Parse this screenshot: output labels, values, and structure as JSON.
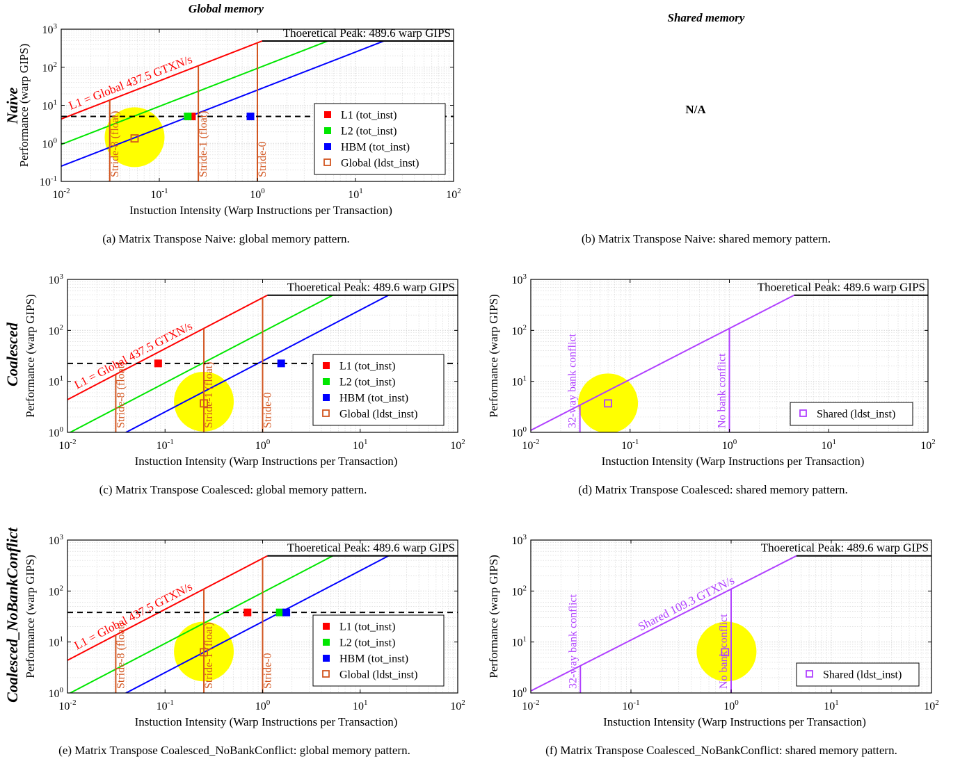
{
  "column_headers": {
    "global": "Global memory",
    "shared": "Shared memory"
  },
  "row_headers": [
    "Naive",
    "Coalesced",
    "Coalesced_NoBankConflict"
  ],
  "na_text": "N/A",
  "captions": {
    "a": "(a) Matrix Transpose Naive: global memory pattern.",
    "b": "(b) Matrix Transpose Naive: shared memory pattern.",
    "c": "(c) Matrix Transpose Coalesced: global memory pattern.",
    "d": "(d) Matrix Transpose Coalesced: shared memory pattern.",
    "e": "(e) Matrix Transpose Coalesced_NoBankConflict: global memory pattern.",
    "f": "(f) Matrix Transpose Coalesced_NoBankConflict: shared memory pattern."
  },
  "colors": {
    "l1": "#ff0000",
    "l2": "#00e600",
    "hbm": "#0000ff",
    "global": "#d2541e",
    "shared": "#b040ff",
    "highlight": "#ffff00",
    "peak": "#000000",
    "grid": "#d9d9d9"
  },
  "chart_data": [
    {
      "id": "a",
      "type": "scatter",
      "scale": "log-log",
      "xlabel": "Instuction Intensity (Warp Instructions per Transaction)",
      "ylabel": "Performance (warp GIPS)",
      "xlim": [
        0.01,
        100
      ],
      "ylim": [
        0.1,
        1000
      ],
      "x_ticks": [
        "10-2",
        "10-1",
        "100",
        "101",
        "102"
      ],
      "y_ticks": [
        "10-1",
        "100",
        "101",
        "102",
        "103"
      ],
      "peak": {
        "label": "Thoeretical Peak: 489.6 warp GIPS",
        "value": 489.6
      },
      "ceilings": [
        {
          "name": "L1",
          "bandwidth": 437.5,
          "color": "l1",
          "label": "L1 = Global 437.5 GTXN/s"
        },
        {
          "name": "L2",
          "bandwidth": 93.6,
          "color": "l2",
          "label": ""
        },
        {
          "name": "HBM",
          "bandwidth": 25.1,
          "color": "hbm",
          "label": ""
        }
      ],
      "stride_lines": [
        {
          "x": 0.03125,
          "label": "Stride-8 (float)"
        },
        {
          "x": 0.25,
          "label": "Stride-1 (float)"
        },
        {
          "x": 1,
          "label": "Stride-0"
        }
      ],
      "dashed_y": 5.1,
      "highlight": {
        "x": 0.056,
        "y": 1.45
      },
      "points": [
        {
          "series": "L1",
          "x": 0.215,
          "y": 5.1,
          "marker": "filled"
        },
        {
          "series": "L2",
          "x": 0.195,
          "y": 5.1,
          "marker": "filled"
        },
        {
          "series": "HBM",
          "x": 0.85,
          "y": 5.1,
          "marker": "filled"
        },
        {
          "series": "Global",
          "x": 0.056,
          "y": 1.35,
          "marker": "open"
        }
      ],
      "legend": [
        {
          "label": "L1 (tot_inst)",
          "color": "l1",
          "marker": "filled"
        },
        {
          "label": "L2 (tot_inst)",
          "color": "l2",
          "marker": "filled"
        },
        {
          "label": "HBM (tot_inst)",
          "color": "hbm",
          "marker": "filled"
        },
        {
          "label": "Global (ldst_inst)",
          "color": "global",
          "marker": "open"
        }
      ],
      "legend_position": "bottom-right"
    },
    {
      "id": "c",
      "type": "scatter",
      "scale": "log-log",
      "xlabel": "Instuction Intensity (Warp Instructions per Transaction)",
      "ylabel": "Performance (warp GIPS)",
      "xlim": [
        0.01,
        100
      ],
      "ylim": [
        1,
        1000
      ],
      "x_ticks": [
        "10-2",
        "10-1",
        "100",
        "101",
        "102"
      ],
      "y_ticks": [
        "100",
        "101",
        "102",
        "103"
      ],
      "peak": {
        "label": "Thoeretical Peak: 489.6 warp GIPS",
        "value": 489.6
      },
      "ceilings": [
        {
          "name": "L1",
          "bandwidth": 437.5,
          "color": "l1",
          "label": "L1 = Global 437.5 GTXN/s"
        },
        {
          "name": "L2",
          "bandwidth": 93.6,
          "color": "l2",
          "label": ""
        },
        {
          "name": "HBM",
          "bandwidth": 25.1,
          "color": "hbm",
          "label": ""
        }
      ],
      "stride_lines": [
        {
          "x": 0.03125,
          "label": "Stride-8 (float)"
        },
        {
          "x": 0.25,
          "label": "Stride-1 (float)"
        },
        {
          "x": 1,
          "label": "Stride-0"
        }
      ],
      "dashed_y": 22.5,
      "highlight": {
        "x": 0.25,
        "y": 4.0
      },
      "points": [
        {
          "series": "L1",
          "x": 0.085,
          "y": 22.5,
          "marker": "filled"
        },
        {
          "series": "HBM",
          "x": 1.55,
          "y": 22.5,
          "marker": "filled"
        },
        {
          "series": "Global",
          "x": 0.25,
          "y": 3.7,
          "marker": "open"
        }
      ],
      "legend": [
        {
          "label": "L1 (tot_inst)",
          "color": "l1",
          "marker": "filled"
        },
        {
          "label": "L2 (tot_inst)",
          "color": "l2",
          "marker": "filled"
        },
        {
          "label": "HBM (tot_inst)",
          "color": "hbm",
          "marker": "filled"
        },
        {
          "label": "Global (ldst_inst)",
          "color": "global",
          "marker": "open"
        }
      ],
      "legend_position": "bottom-right"
    },
    {
      "id": "d",
      "type": "scatter",
      "scale": "log-log",
      "xlabel": "Instuction Intensity (Warp Instructions per Transaction)",
      "ylabel": "Performance (warp GIPS)",
      "xlim": [
        0.01,
        100
      ],
      "ylim": [
        1,
        1000
      ],
      "x_ticks": [
        "10-2",
        "10-1",
        "100",
        "101",
        "102"
      ],
      "y_ticks": [
        "100",
        "101",
        "102",
        "103"
      ],
      "peak": {
        "label": "Thoeretical Peak: 489.6 warp GIPS",
        "value": 489.6
      },
      "ceilings": [
        {
          "name": "Shared",
          "bandwidth": 109.3,
          "color": "shared",
          "label": ""
        }
      ],
      "bank_lines": [
        {
          "x": 0.03125,
          "label": "32-way bank conflict"
        },
        {
          "x": 1,
          "label": "No bank conflict"
        }
      ],
      "highlight": {
        "x": 0.06,
        "y": 3.7
      },
      "points": [
        {
          "series": "Shared",
          "x": 0.06,
          "y": 3.7,
          "marker": "open"
        }
      ],
      "legend": [
        {
          "label": "Shared (ldst_inst)",
          "color": "shared",
          "marker": "open"
        }
      ],
      "legend_position": "bottom-right"
    },
    {
      "id": "e",
      "type": "scatter",
      "scale": "log-log",
      "xlabel": "Instuction Intensity (Warp Instructions per Transaction)",
      "ylabel": "Performance (warp GIPS)",
      "xlim": [
        0.01,
        100
      ],
      "ylim": [
        1,
        1000
      ],
      "x_ticks": [
        "10-2",
        "10-1",
        "100",
        "101",
        "102"
      ],
      "y_ticks": [
        "100",
        "101",
        "102",
        "103"
      ],
      "peak": {
        "label": "Thoeretical Peak: 489.6 warp GIPS",
        "value": 489.6
      },
      "ceilings": [
        {
          "name": "L1",
          "bandwidth": 437.5,
          "color": "l1",
          "label": "L1 = Global 437.5 GTXN/s"
        },
        {
          "name": "L2",
          "bandwidth": 93.6,
          "color": "l2",
          "label": ""
        },
        {
          "name": "HBM",
          "bandwidth": 25.1,
          "color": "hbm",
          "label": ""
        }
      ],
      "stride_lines": [
        {
          "x": 0.03125,
          "label": "Stride-8 (float)"
        },
        {
          "x": 0.25,
          "label": "Stride-1 (float)"
        },
        {
          "x": 1,
          "label": "Stride-0"
        }
      ],
      "dashed_y": 38,
      "highlight": {
        "x": 0.25,
        "y": 6.5
      },
      "points": [
        {
          "series": "L1",
          "x": 0.7,
          "y": 38,
          "marker": "filled"
        },
        {
          "series": "L2",
          "x": 1.5,
          "y": 38,
          "marker": "filled"
        },
        {
          "series": "HBM",
          "x": 1.75,
          "y": 38,
          "marker": "filled"
        },
        {
          "series": "Global",
          "x": 0.25,
          "y": 6.3,
          "marker": "open"
        }
      ],
      "legend": [
        {
          "label": "L1 (tot_inst)",
          "color": "l1",
          "marker": "filled"
        },
        {
          "label": "L2 (tot_inst)",
          "color": "l2",
          "marker": "filled"
        },
        {
          "label": "HBM (tot_inst)",
          "color": "hbm",
          "marker": "filled"
        },
        {
          "label": "Global (ldst_inst)",
          "color": "global",
          "marker": "open"
        }
      ],
      "legend_position": "bottom-right"
    },
    {
      "id": "f",
      "type": "scatter",
      "scale": "log-log",
      "xlabel": "Instuction Intensity (Warp Instructions per Transaction)",
      "ylabel": "Performance (warp GIPS)",
      "xlim": [
        0.01,
        100
      ],
      "ylim": [
        1,
        1000
      ],
      "x_ticks": [
        "10-2",
        "10-1",
        "100",
        "101",
        "102"
      ],
      "y_ticks": [
        "100",
        "101",
        "102",
        "103"
      ],
      "peak": {
        "label": "Thoeretical Peak: 489.6 warp GIPS",
        "value": 489.6
      },
      "ceilings": [
        {
          "name": "Shared",
          "bandwidth": 109.3,
          "color": "shared",
          "label": "Shared 109.3 GTXN/s"
        }
      ],
      "bank_lines": [
        {
          "x": 0.03125,
          "label": "32-way bank conflict"
        },
        {
          "x": 1,
          "label": "No bank conflict"
        }
      ],
      "highlight": {
        "x": 0.9,
        "y": 6.5
      },
      "points": [
        {
          "series": "Shared",
          "x": 0.87,
          "y": 6.3,
          "marker": "open"
        }
      ],
      "legend": [
        {
          "label": "Shared (ldst_inst)",
          "color": "shared",
          "marker": "open"
        }
      ],
      "legend_position": "bottom-right"
    }
  ]
}
